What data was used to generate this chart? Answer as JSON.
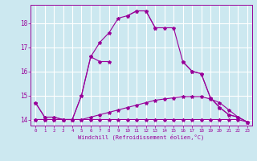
{
  "xlabel": "Windchill (Refroidissement éolien,°C)",
  "x": [
    0,
    1,
    2,
    3,
    4,
    5,
    6,
    7,
    8,
    9,
    10,
    11,
    12,
    13,
    14,
    15,
    16,
    17,
    18,
    19,
    20,
    21,
    22,
    23
  ],
  "line1": [
    14.7,
    14.1,
    14.1,
    14.0,
    14.0,
    15.0,
    16.6,
    16.4,
    16.4,
    null,
    18.3,
    18.5,
    18.5,
    17.8,
    null,
    null,
    16.4,
    16.0,
    15.9,
    14.9,
    14.5,
    14.2,
    14.1,
    13.9
  ],
  "line2": [
    14.7,
    14.1,
    14.1,
    14.0,
    14.0,
    15.0,
    16.6,
    17.2,
    17.6,
    18.2,
    18.3,
    18.5,
    18.5,
    17.8,
    17.8,
    17.8,
    16.4,
    16.0,
    15.9,
    14.9,
    14.5,
    14.2,
    14.1,
    13.9
  ],
  "line3": [
    14.0,
    14.0,
    14.0,
    14.0,
    14.0,
    14.0,
    14.1,
    14.2,
    14.3,
    14.4,
    14.5,
    14.6,
    14.7,
    14.8,
    14.85,
    14.9,
    14.95,
    14.95,
    14.95,
    14.85,
    14.7,
    14.4,
    14.1,
    13.9
  ],
  "line4": [
    14.0,
    14.0,
    14.0,
    14.0,
    14.0,
    14.0,
    14.0,
    14.0,
    14.0,
    14.0,
    14.0,
    14.0,
    14.0,
    14.0,
    14.0,
    14.0,
    14.0,
    14.0,
    14.0,
    14.0,
    14.0,
    14.0,
    14.0,
    13.9
  ],
  "ylim": [
    13.75,
    18.75
  ],
  "yticks": [
    14,
    15,
    16,
    17,
    18
  ],
  "color": "#990099",
  "bg_color": "#cce8f0",
  "grid_color": "#ffffff",
  "marker": "*",
  "markersize": 3.0,
  "linewidth": 0.8
}
